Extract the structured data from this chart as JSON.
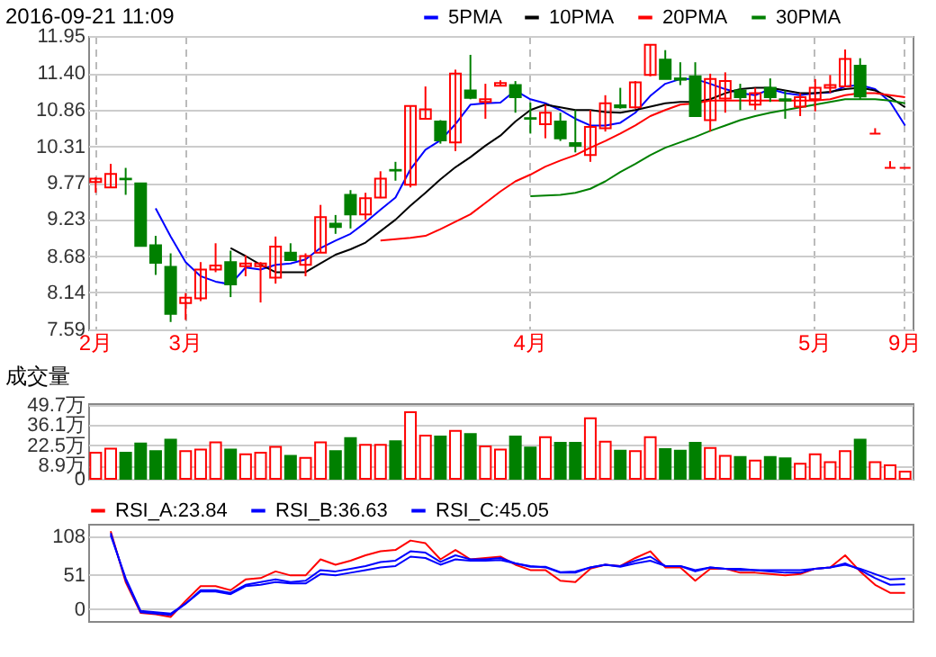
{
  "chart_data": [
    {
      "type": "candlestick",
      "title": "2016-09-21 11:09",
      "categories": [
        "2月",
        null,
        null,
        null,
        null,
        null,
        "3月",
        null,
        null,
        null,
        null,
        null,
        null,
        null,
        null,
        null,
        null,
        null,
        null,
        null,
        null,
        null,
        null,
        null,
        null,
        null,
        null,
        null,
        null,
        "4月",
        null,
        null,
        null,
        null,
        null,
        null,
        null,
        null,
        null,
        null,
        null,
        null,
        null,
        null,
        null,
        null,
        null,
        null,
        "5月",
        null,
        null,
        null,
        null,
        null,
        "9月"
      ],
      "ohlc": [
        [
          9.78,
          9.85,
          9.62,
          9.83
        ],
        [
          9.7,
          10.05,
          9.7,
          9.9
        ],
        [
          9.83,
          9.99,
          9.59,
          9.82
        ],
        [
          9.76,
          9.76,
          8.83,
          8.83
        ],
        [
          8.84,
          8.98,
          8.4,
          8.58
        ],
        [
          8.52,
          8.72,
          7.7,
          7.82
        ],
        [
          7.98,
          8.13,
          7.73,
          8.06
        ],
        [
          8.05,
          8.59,
          8.01,
          8.48
        ],
        [
          8.48,
          8.87,
          8.44,
          8.54
        ],
        [
          8.59,
          8.76,
          8.07,
          8.26
        ],
        [
          8.53,
          8.69,
          8.38,
          8.57
        ],
        [
          8.53,
          8.59,
          7.99,
          8.57
        ],
        [
          8.36,
          8.97,
          8.27,
          8.82
        ],
        [
          8.73,
          8.87,
          8.62,
          8.62
        ],
        [
          8.55,
          8.72,
          8.38,
          8.68
        ],
        [
          8.73,
          9.44,
          8.73,
          9.26
        ],
        [
          9.16,
          9.29,
          9.01,
          9.11
        ],
        [
          9.59,
          9.66,
          9.09,
          9.3
        ],
        [
          9.3,
          9.62,
          9.22,
          9.54
        ],
        [
          9.55,
          9.94,
          9.54,
          9.83
        ],
        [
          9.96,
          10.08,
          9.8,
          9.95
        ],
        [
          9.74,
          10.91,
          9.7,
          10.91
        ],
        [
          10.72,
          11.2,
          10.72,
          10.86
        ],
        [
          10.68,
          10.7,
          10.35,
          10.4
        ],
        [
          10.37,
          11.45,
          10.24,
          11.39
        ],
        [
          11.14,
          11.67,
          11.01,
          11.03
        ],
        [
          10.97,
          11.24,
          10.72,
          11.01
        ],
        [
          11.21,
          11.29,
          11.21,
          11.25
        ],
        [
          11.22,
          11.28,
          10.81,
          11.04
        ],
        [
          10.73,
          10.96,
          10.5,
          10.72
        ],
        [
          10.64,
          10.93,
          10.43,
          10.81
        ],
        [
          10.68,
          10.81,
          10.39,
          10.43
        ],
        [
          10.36,
          10.85,
          10.22,
          10.32
        ],
        [
          10.18,
          10.85,
          10.08,
          10.6
        ],
        [
          10.58,
          11.07,
          10.53,
          10.95
        ],
        [
          10.92,
          11.18,
          10.87,
          10.89
        ],
        [
          10.89,
          11.28,
          10.87,
          11.26
        ],
        [
          11.37,
          11.82,
          11.35,
          11.82
        ],
        [
          11.6,
          11.74,
          11.31,
          11.31
        ],
        [
          11.32,
          11.56,
          11.22,
          11.3
        ],
        [
          11.35,
          11.56,
          10.76,
          10.76
        ],
        [
          10.7,
          11.39,
          10.53,
          11.31
        ],
        [
          11.02,
          11.41,
          10.81,
          11.28
        ],
        [
          11.14,
          11.24,
          10.85,
          11.04
        ],
        [
          10.93,
          11.18,
          10.85,
          11.1
        ],
        [
          11.18,
          11.32,
          10.97,
          11.04
        ],
        [
          11.01,
          11.14,
          10.72,
          10.99
        ],
        [
          10.9,
          11.1,
          10.76,
          11.04
        ],
        [
          11.01,
          11.31,
          10.83,
          11.18
        ],
        [
          11.18,
          11.37,
          11.1,
          11.22
        ],
        [
          11.2,
          11.75,
          11.2,
          11.61
        ],
        [
          11.51,
          11.62,
          11.01,
          11.05
        ],
        [
          10.5,
          10.58,
          10.5,
          10.5
        ],
        [
          9.99,
          10.09,
          9.99,
          9.99
        ],
        [
          9.99,
          9.99,
          9.99,
          9.99
        ]
      ],
      "colors": [
        "#ff0000",
        "#ff0000",
        "#008000",
        "#008000",
        "#008000",
        "#008000",
        "#ff0000",
        "#ff0000",
        "#ff0000",
        "#008000",
        "#ff0000",
        "#ff0000",
        "#ff0000",
        "#008000",
        "#ff0000",
        "#ff0000",
        "#008000",
        "#008000",
        "#ff0000",
        "#ff0000",
        "#008000",
        "#ff0000",
        "#ff0000",
        "#008000",
        "#ff0000",
        "#008000",
        "#ff0000",
        "#ff0000",
        "#008000",
        "#008000",
        "#ff0000",
        "#008000",
        "#008000",
        "#ff0000",
        "#ff0000",
        "#008000",
        "#ff0000",
        "#ff0000",
        "#008000",
        "#008000",
        "#008000",
        "#ff0000",
        "#ff0000",
        "#008000",
        "#ff0000",
        "#008000",
        "#008000",
        "#ff0000",
        "#ff0000",
        "#ff0000",
        "#ff0000",
        "#008000",
        "#ff0000",
        "#ff0000",
        "#ff0000"
      ],
      "series": [
        {
          "name": "5PMA",
          "type": "line",
          "color": "#0000ff",
          "values": [
            null,
            null,
            null,
            null,
            9.39,
            8.97,
            8.59,
            8.38,
            8.3,
            8.26,
            8.51,
            8.48,
            8.55,
            8.57,
            8.63,
            8.8,
            8.91,
            9.01,
            9.18,
            9.37,
            9.55,
            9.97,
            10.26,
            10.4,
            10.64,
            10.93,
            10.95,
            10.96,
            11.14,
            11.01,
            10.95,
            10.85,
            10.72,
            10.62,
            10.62,
            10.66,
            10.81,
            11.06,
            11.24,
            11.31,
            11.31,
            11.24,
            11.16,
            11.1,
            11.07,
            11.16,
            11.1,
            11.07,
            11.1,
            11.11,
            11.2,
            11.22,
            11.16,
            10.97,
            10.62
          ]
        },
        {
          "name": "10PMA",
          "type": "line",
          "color": "#000000",
          "values": [
            null,
            null,
            null,
            null,
            null,
            null,
            null,
            null,
            null,
            8.8,
            8.68,
            8.55,
            8.44,
            8.44,
            8.44,
            8.57,
            8.7,
            8.78,
            8.88,
            9.05,
            9.22,
            9.43,
            9.62,
            9.82,
            10.0,
            10.15,
            10.32,
            10.47,
            10.68,
            10.85,
            10.93,
            10.89,
            10.85,
            10.85,
            10.82,
            10.81,
            10.85,
            10.9,
            10.95,
            10.97,
            10.97,
            11.01,
            11.1,
            11.16,
            11.18,
            11.18,
            11.14,
            11.1,
            11.1,
            11.12,
            11.16,
            11.18,
            11.14,
            11.04,
            10.89
          ]
        },
        {
          "name": "20PMA",
          "type": "line",
          "color": "#ff0000",
          "values": [
            null,
            null,
            null,
            null,
            null,
            null,
            null,
            null,
            null,
            null,
            null,
            null,
            null,
            null,
            null,
            null,
            null,
            null,
            null,
            8.91,
            8.93,
            8.95,
            8.98,
            9.08,
            9.19,
            9.3,
            9.47,
            9.64,
            9.79,
            9.89,
            10.01,
            10.1,
            10.18,
            10.29,
            10.39,
            10.5,
            10.62,
            10.76,
            10.85,
            10.93,
            10.95,
            10.99,
            10.99,
            10.99,
            10.99,
            10.99,
            10.99,
            10.99,
            10.99,
            11.01,
            11.07,
            11.1,
            11.1,
            11.07,
            11.04
          ]
        },
        {
          "name": "30PMA",
          "type": "line",
          "color": "#008000",
          "values": [
            null,
            null,
            null,
            null,
            null,
            null,
            null,
            null,
            null,
            null,
            null,
            null,
            null,
            null,
            null,
            null,
            null,
            null,
            null,
            null,
            null,
            null,
            null,
            null,
            null,
            null,
            null,
            null,
            null,
            9.57,
            9.58,
            9.59,
            9.62,
            9.68,
            9.79,
            9.93,
            10.05,
            10.18,
            10.29,
            10.37,
            10.45,
            10.54,
            10.62,
            10.7,
            10.76,
            10.81,
            10.85,
            10.89,
            10.93,
            10.97,
            11.01,
            11.01,
            11.01,
            10.99,
            10.95
          ]
        }
      ],
      "ylim": [
        7.59,
        11.95
      ],
      "yticks": [
        7.59,
        8.14,
        8.68,
        9.23,
        9.77,
        10.31,
        10.86,
        {
          "value": 11.4,
          "label": "11.40"
        },
        11.95
      ],
      "grid": true,
      "legend": "top"
    },
    {
      "type": "bar",
      "title": "成交量",
      "categories": [
        null,
        null,
        null,
        null,
        null,
        null,
        null,
        null,
        null,
        null,
        null,
        null,
        null,
        null,
        null,
        null,
        null,
        null,
        null,
        null,
        null,
        null,
        null,
        null,
        null,
        null,
        null,
        null,
        null,
        null,
        null,
        null,
        null,
        null,
        null,
        null,
        null,
        null,
        null,
        null,
        null,
        null,
        null,
        null,
        null,
        null,
        null,
        null,
        null,
        null,
        null,
        null,
        null,
        null,
        null
      ],
      "values": [
        17.5,
        20.3,
        17.5,
        23.8,
        18.6,
        26.3,
        18.6,
        19.6,
        24.5,
        19.6,
        16.5,
        17.5,
        21.4,
        15.4,
        14.0,
        24.5,
        18.6,
        27.3,
        22.8,
        22.8,
        25.2,
        44.8,
        29.1,
        28.4,
        32.2,
        30.1,
        21.7,
        19.6,
        28.4,
        21.0,
        28.0,
        24.2,
        24.2,
        40.6,
        24.9,
        18.9,
        18.6,
        28.0,
        20.0,
        18.9,
        24.2,
        20.7,
        15.4,
        14.7,
        12.3,
        14.7,
        13.7,
        10.2,
        16.5,
        11.2,
        18.6,
        26.3,
        11.2,
        9.1,
        4.9
      ],
      "colors": [
        "#ff0000",
        "#ff0000",
        "#008000",
        "#008000",
        "#008000",
        "#008000",
        "#ff0000",
        "#ff0000",
        "#ff0000",
        "#008000",
        "#ff0000",
        "#ff0000",
        "#ff0000",
        "#008000",
        "#ff0000",
        "#ff0000",
        "#008000",
        "#008000",
        "#ff0000",
        "#ff0000",
        "#008000",
        "#ff0000",
        "#ff0000",
        "#008000",
        "#ff0000",
        "#008000",
        "#ff0000",
        "#ff0000",
        "#008000",
        "#008000",
        "#ff0000",
        "#008000",
        "#008000",
        "#ff0000",
        "#ff0000",
        "#008000",
        "#ff0000",
        "#ff0000",
        "#008000",
        "#008000",
        "#008000",
        "#ff0000",
        "#ff0000",
        "#008000",
        "#ff0000",
        "#008000",
        "#008000",
        "#ff0000",
        "#ff0000",
        "#ff0000",
        "#ff0000",
        "#008000",
        "#ff0000",
        "#ff0000",
        "#ff0000"
      ],
      "ylim": [
        0,
        50.8
      ],
      "yticks": [
        0,
        {
          "value": 8.9,
          "label": "8.9万"
        },
        {
          "value": 22.5,
          "label": "22.5万"
        },
        {
          "value": 36.1,
          "label": "36.1万"
        },
        {
          "value": 49.7,
          "label": "49.7万"
        }
      ],
      "grid": "y",
      "tick_labels": "y"
    },
    {
      "type": "line",
      "categories": [
        null,
        null,
        null,
        null,
        null,
        null,
        null,
        null,
        null,
        null,
        null,
        null,
        null,
        null,
        null,
        null,
        null,
        null,
        null,
        null,
        null,
        null,
        null,
        null,
        null,
        null,
        null,
        null,
        null,
        null,
        null,
        null,
        null,
        null,
        null,
        null,
        null,
        null,
        null,
        null,
        null,
        null,
        null,
        null,
        null,
        null,
        null,
        null,
        null,
        null,
        null,
        null,
        null,
        null,
        null
      ],
      "series": [
        {
          "name": "RSI_A:23.84",
          "color": "#ff0000",
          "values": [
            null,
            116,
            40,
            -6,
            -8,
            -12,
            12,
            34,
            34,
            28,
            44,
            46,
            56,
            50,
            50,
            74,
            66,
            72,
            80,
            86,
            88,
            102,
            98,
            74,
            88,
            74,
            76,
            78,
            66,
            58,
            58,
            42,
            40,
            60,
            66,
            64,
            76,
            86,
            62,
            62,
            42,
            60,
            60,
            54,
            54,
            52,
            50,
            52,
            60,
            62,
            80,
            56,
            36,
            24,
            23.84
          ]
        },
        {
          "name": "RSI_B:36.63",
          "color": "#0000ff",
          "values": [
            null,
            113,
            43,
            -5,
            -7,
            -9,
            8,
            28,
            28,
            24,
            36,
            40,
            44,
            40,
            42,
            58,
            56,
            60,
            64,
            70,
            72,
            86,
            84,
            70,
            80,
            74,
            74,
            76,
            68,
            64,
            62,
            54,
            54,
            62,
            66,
            64,
            72,
            78,
            64,
            64,
            56,
            62,
            60,
            58,
            58,
            56,
            54,
            54,
            60,
            62,
            68,
            58,
            46,
            36,
            36.63
          ]
        },
        {
          "name": "RSI_C:45.05",
          "color": "#0000ff",
          "values": [
            null,
            110,
            46,
            -3,
            -5,
            -7,
            8,
            26,
            26,
            22,
            34,
            36,
            40,
            38,
            38,
            52,
            50,
            54,
            58,
            62,
            64,
            78,
            76,
            66,
            74,
            72,
            72,
            73,
            68,
            63,
            63,
            55,
            56,
            62,
            66,
            63,
            68,
            72,
            64,
            64,
            58,
            62,
            60,
            60,
            58,
            58,
            58,
            58,
            60,
            62,
            66,
            60,
            52,
            44,
            45.05
          ]
        }
      ],
      "ylim": [
        -18,
        127
      ],
      "yticks": [
        0,
        51,
        108
      ],
      "grid": "y",
      "legend": "top left",
      "tick_labels": "y"
    }
  ]
}
